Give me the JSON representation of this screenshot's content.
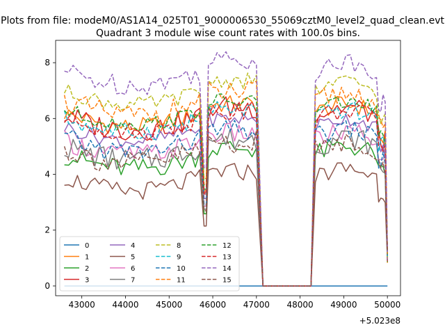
{
  "figure": {
    "suptitle": "Plots from file: modeM0/AS1A14_025T01_9000006530_55069cztM0_level2_quad_clean.evt",
    "offset_text": "+5.023e8"
  },
  "chart_data": {
    "type": "line",
    "title": "Quadrant 3 module wise count rates with 100.0s bins.",
    "xlabel": "",
    "ylabel": "",
    "xlim": [
      42400,
      50300
    ],
    "ylim": [
      -0.35,
      8.8
    ],
    "xticks": [
      43000,
      44000,
      45000,
      46000,
      47000,
      48000,
      49000,
      50000
    ],
    "xtick_labels": [
      "43000",
      "44000",
      "45000",
      "46000",
      "47000",
      "48000",
      "49000",
      "50000"
    ],
    "yticks": [
      0,
      2,
      4,
      6,
      8
    ],
    "ytick_labels": [
      "0",
      "2",
      "4",
      "6",
      "8"
    ],
    "grid": false,
    "legend_position": "lower-left",
    "legend_columns": 4,
    "segments": {
      "seg1": [
        42600,
        45750
      ],
      "dip": [
        45800,
        45850
      ],
      "seg2": [
        45900,
        47050
      ],
      "gap": [
        47150,
        48250
      ],
      "seg3": [
        48350,
        49750
      ],
      "dip2": [
        49800,
        49950
      ],
      "end": 50000
    },
    "series": [
      {
        "name": "0",
        "color": "#1f77b4",
        "dash": "solid",
        "level": 0.0
      },
      {
        "name": "1",
        "color": "#ff7f0e",
        "dash": "solid",
        "level": 6.2
      },
      {
        "name": "2",
        "color": "#2ca02c",
        "dash": "solid",
        "level": 4.7
      },
      {
        "name": "3",
        "color": "#d62728",
        "dash": "solid",
        "level": 6.1
      },
      {
        "name": "4",
        "color": "#9467bd",
        "dash": "solid",
        "level": 5.7
      },
      {
        "name": "5",
        "color": "#8c564b",
        "dash": "solid",
        "level": 3.9
      },
      {
        "name": "6",
        "color": "#e377c2",
        "dash": "solid",
        "level": 5.2
      },
      {
        "name": "7",
        "color": "#7f7f7f",
        "dash": "solid",
        "level": 5.0
      },
      {
        "name": "8",
        "color": "#bcbd22",
        "dash": "dashed",
        "level": 7.0
      },
      {
        "name": "9",
        "color": "#17becf",
        "dash": "dashed",
        "level": 6.0
      },
      {
        "name": "10",
        "color": "#1f77b4",
        "dash": "dashed",
        "level": 5.3
      },
      {
        "name": "11",
        "color": "#ff7f0e",
        "dash": "dashed",
        "level": 6.6
      },
      {
        "name": "12",
        "color": "#2ca02c",
        "dash": "dashed",
        "level": 6.3
      },
      {
        "name": "13",
        "color": "#d62728",
        "dash": "dashed",
        "level": 6.0
      },
      {
        "name": "14",
        "color": "#9467bd",
        "dash": "dashed",
        "level": 7.7
      },
      {
        "name": "15",
        "color": "#8c564b",
        "dash": "dashed",
        "level": 4.9
      }
    ]
  }
}
